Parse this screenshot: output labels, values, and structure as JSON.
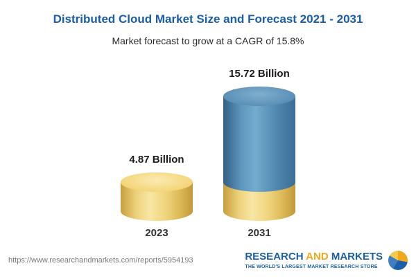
{
  "chart_data": {
    "type": "bar",
    "style": "3d-cylinder",
    "title": "Distributed Cloud Market Size and Forecast 2021 - 2031",
    "subtitle": "Market forecast to grow at a CAGR of 15.8%",
    "categories": [
      "2023",
      "2031"
    ],
    "values": [
      4.87,
      15.72
    ],
    "value_labels": [
      "4.87 Billion",
      "15.72 Billion"
    ],
    "unit": "Billion",
    "xlabel": "",
    "ylabel": "",
    "grid": false,
    "legend": "none",
    "note": "2031 bar is stacked: gold base segment equals 2023 value, blue segment is forecast growth",
    "colors": {
      "title_blue": "#1a5da8",
      "bar_gold": "#f0ce6d",
      "bar_blue": "#4e87b2"
    }
  },
  "footer": {
    "url": "https://www.researchandmarkets.com/reports/5954193",
    "logo": {
      "word_research": "RESEARCH",
      "word_and": "AND",
      "word_markets": "MARKETS",
      "tagline": "THE WORLD'S LARGEST MARKET RESEARCH STORE"
    }
  }
}
